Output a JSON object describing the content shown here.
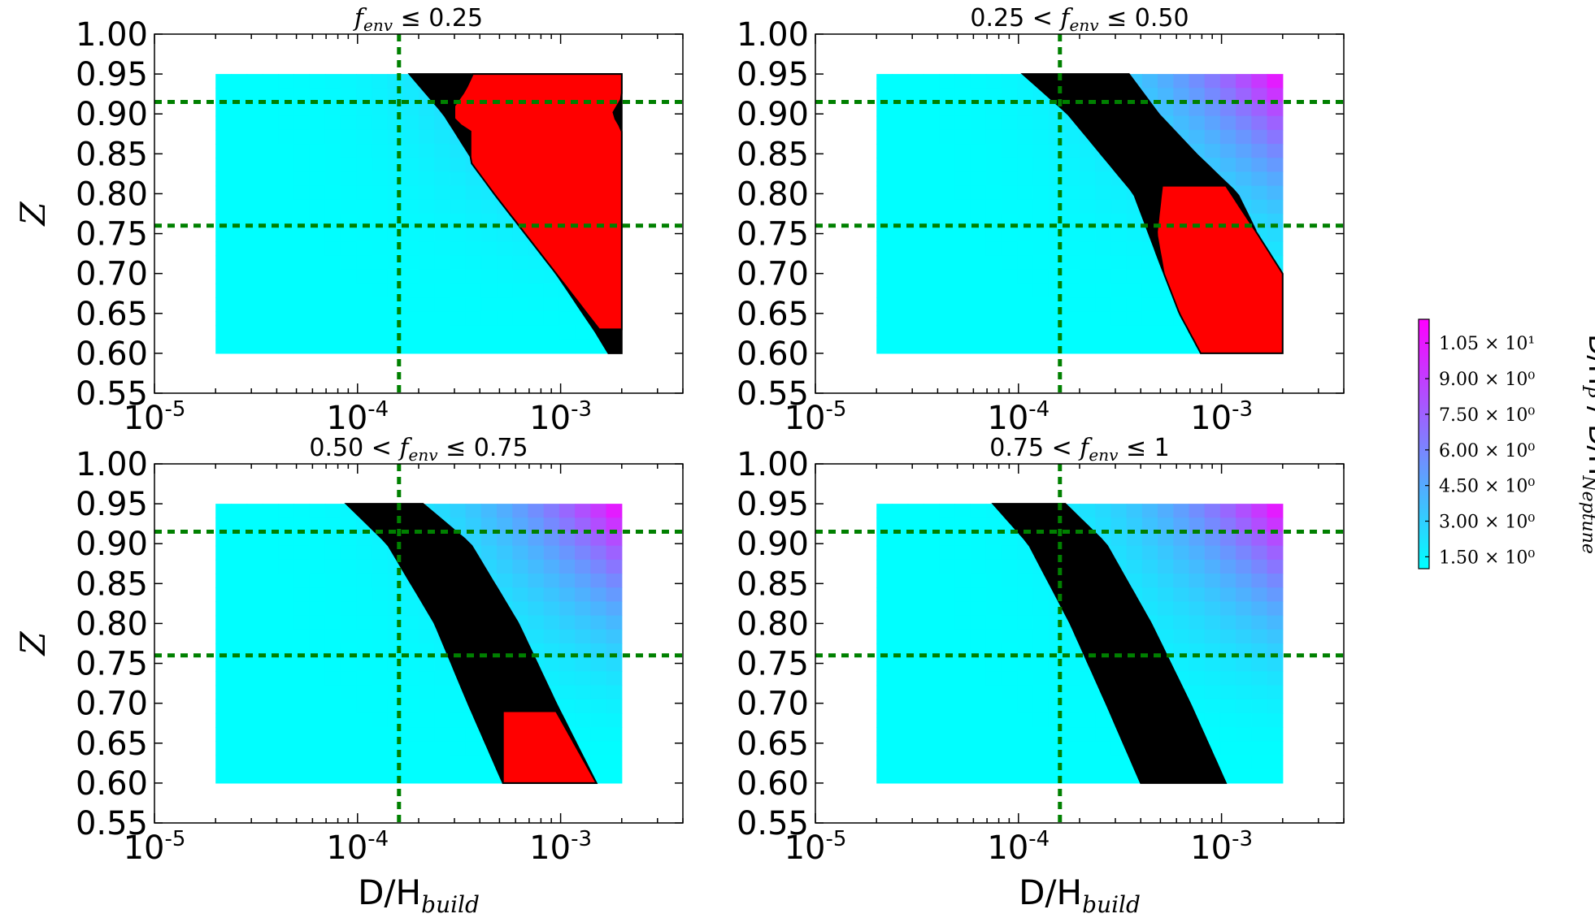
{
  "chart_data": [
    {
      "type": "scatter",
      "panel": "top-left",
      "title": "f_env ≤ 0.25",
      "title_parts": {
        "prefix": "",
        "var": "f",
        "sub": "env",
        "suffix": " ≤ 0.25"
      },
      "xlabel": "",
      "ylabel": "Z",
      "xscale": "log",
      "xlim": [
        1e-05,
        0.004
      ],
      "ylim": [
        0.55,
        1.0
      ],
      "x_ticks": [
        "10-5",
        "10-4",
        "10-3"
      ],
      "y_ticks": [
        "1.00",
        "0.95",
        "0.90",
        "0.85",
        "0.80",
        "0.75",
        "0.70",
        "0.65",
        "0.60",
        "0.55"
      ],
      "grid_x_range": [
        2e-05,
        0.002
      ],
      "grid_z_range": [
        0.6,
        0.95
      ],
      "reference_lines": {
        "x": 0.00016,
        "z": [
          0.915,
          0.76
        ]
      },
      "regions": [
        {
          "name": "black band",
          "color": "#000000",
          "z_lo": 0.6,
          "z_hi": 0.95,
          "left": [
            [
              0.6,
              0.00172
            ],
            [
              0.625,
              0.0015
            ],
            [
              0.7,
              0.00095
            ],
            [
              0.8,
              0.00047
            ],
            [
              0.9,
              0.000265
            ],
            [
              0.95,
              0.00018
            ]
          ],
          "right": [
            [
              0.6,
              0.002
            ],
            [
              0.95,
              0.002
            ]
          ]
        },
        {
          "name": "red region",
          "color": "#ff0000",
          "z_lo": 0.63,
          "z_hi": 0.95,
          "left": [
            [
              0.63,
              0.00155
            ],
            [
              0.7,
              0.00095
            ],
            [
              0.8,
              0.00047
            ],
            [
              0.84,
              0.00036
            ],
            [
              0.86,
              0.00036
            ],
            [
              0.88,
              0.00036
            ],
            [
              0.89,
              0.0003
            ],
            [
              0.91,
              0.0003
            ],
            [
              0.93,
              0.00034
            ],
            [
              0.95,
              0.00037
            ]
          ],
          "right": [
            [
              0.63,
              0.002
            ],
            [
              0.88,
              0.002
            ],
            [
              0.9,
              0.0018
            ],
            [
              0.92,
              0.002
            ],
            [
              0.95,
              0.002
            ]
          ]
        }
      ]
    },
    {
      "type": "scatter",
      "panel": "top-right",
      "title": "0.25 < f_env ≤ 0.50",
      "title_parts": {
        "prefix": "0.25  <  ",
        "var": "f",
        "sub": "env",
        "suffix": "  ≤  0.50"
      },
      "xlabel": "",
      "ylabel": "",
      "xscale": "log",
      "xlim": [
        1e-05,
        0.004
      ],
      "ylim": [
        0.55,
        1.0
      ],
      "x_ticks": [
        "10-5",
        "10-4",
        "10-3"
      ],
      "y_ticks": [
        "1.00",
        "0.95",
        "0.90",
        "0.85",
        "0.80",
        "0.75",
        "0.70",
        "0.65",
        "0.60",
        "0.55"
      ],
      "grid_x_range": [
        2e-05,
        0.002
      ],
      "grid_z_range": [
        0.6,
        0.95
      ],
      "reference_lines": {
        "x": 0.00016,
        "z": [
          0.915,
          0.76
        ]
      },
      "regions": [
        {
          "name": "black band",
          "color": "#000000",
          "z_lo": 0.66,
          "z_hi": 0.95,
          "left": [
            [
              0.66,
              0.00062
            ],
            [
              0.7,
              0.00052
            ],
            [
              0.8,
              0.00037
            ],
            [
              0.9,
              0.000175
            ],
            [
              0.95,
              0.000105
            ]
          ],
          "right": [
            [
              0.66,
              0.0008
            ],
            [
              0.7,
              0.0012
            ],
            [
              0.75,
              0.0015
            ],
            [
              0.8,
              0.0012
            ],
            [
              0.85,
              0.00075
            ],
            [
              0.9,
              0.00049
            ],
            [
              0.95,
              0.00035
            ]
          ]
        },
        {
          "name": "red region",
          "color": "#ff0000",
          "z_lo": 0.6,
          "z_hi": 0.81,
          "left": [
            [
              0.6,
              0.00079
            ],
            [
              0.65,
              0.00062
            ],
            [
              0.7,
              0.00052
            ],
            [
              0.75,
              0.00048
            ],
            [
              0.81,
              0.00051
            ]
          ],
          "right": [
            [
              0.6,
              0.002
            ],
            [
              0.7,
              0.002
            ],
            [
              0.75,
              0.0015
            ],
            [
              0.81,
              0.00105
            ]
          ]
        }
      ]
    },
    {
      "type": "scatter",
      "panel": "bottom-left",
      "title": "0.50 < f_env ≤ 0.75",
      "title_parts": {
        "prefix": "0.50  <  ",
        "var": "f",
        "sub": "env",
        "suffix": "  ≤  0.75"
      },
      "xlabel": "D/H_build",
      "ylabel": "Z",
      "xscale": "log",
      "xlim": [
        1e-05,
        0.004
      ],
      "ylim": [
        0.55,
        1.0
      ],
      "x_ticks": [
        "10-5",
        "10-4",
        "10-3"
      ],
      "y_ticks": [
        "1.00",
        "0.95",
        "0.90",
        "0.85",
        "0.80",
        "0.75",
        "0.70",
        "0.65",
        "0.60",
        "0.55"
      ],
      "grid_x_range": [
        2e-05,
        0.002
      ],
      "grid_z_range": [
        0.6,
        0.95
      ],
      "reference_lines": {
        "x": 0.00016,
        "z": [
          0.915,
          0.76
        ]
      },
      "regions": [
        {
          "name": "black band",
          "color": "#000000",
          "z_lo": 0.6,
          "z_hi": 0.95,
          "left": [
            [
              0.6,
              0.00052
            ],
            [
              0.7,
              0.00035
            ],
            [
              0.8,
              0.00024
            ],
            [
              0.9,
              0.00014
            ],
            [
              0.95,
              8.8e-05
            ]
          ],
          "right": [
            [
              0.6,
              0.0015
            ],
            [
              0.7,
              0.00095
            ],
            [
              0.8,
              0.00062
            ],
            [
              0.9,
              0.00036
            ],
            [
              0.95,
              0.00021
            ]
          ]
        },
        {
          "name": "red region",
          "color": "#ff0000",
          "z_lo": 0.6,
          "z_hi": 0.69,
          "left": [
            [
              0.6,
              0.00052
            ],
            [
              0.69,
              0.00052
            ]
          ],
          "right": [
            [
              0.6,
              0.0015
            ],
            [
              0.69,
              0.00095
            ]
          ]
        }
      ]
    },
    {
      "type": "scatter",
      "panel": "bottom-right",
      "title": "0.75 < f_env ≤ 1",
      "title_parts": {
        "prefix": "0.75  <  ",
        "var": "f",
        "sub": "env",
        "suffix": "  ≤  1"
      },
      "xlabel": "D/H_build",
      "ylabel": "",
      "xscale": "log",
      "xlim": [
        1e-05,
        0.004
      ],
      "ylim": [
        0.55,
        1.0
      ],
      "x_ticks": [
        "10-5",
        "10-4",
        "10-3"
      ],
      "y_ticks": [
        "1.00",
        "0.95",
        "0.90",
        "0.85",
        "0.80",
        "0.75",
        "0.70",
        "0.65",
        "0.60",
        "0.55"
      ],
      "grid_x_range": [
        2e-05,
        0.002
      ],
      "grid_z_range": [
        0.6,
        0.95
      ],
      "reference_lines": {
        "x": 0.00016,
        "z": [
          0.915,
          0.76
        ]
      },
      "regions": [
        {
          "name": "black band",
          "color": "#000000",
          "z_lo": 0.6,
          "z_hi": 0.95,
          "left": [
            [
              0.6,
              0.0004
            ],
            [
              0.7,
              0.00027
            ],
            [
              0.8,
              0.00018
            ],
            [
              0.9,
              0.000112
            ],
            [
              0.95,
              7.5e-05
            ]
          ],
          "right": [
            [
              0.6,
              0.00105
            ],
            [
              0.7,
              0.0007
            ],
            [
              0.8,
              0.00045
            ],
            [
              0.9,
              0.00027
            ],
            [
              0.95,
              0.00017
            ]
          ]
        }
      ]
    }
  ],
  "colorbar": {
    "title": "D/H_P / D/H_Neptune",
    "title_parts": {
      "a": "D/H",
      "a_sub": "P",
      "sep": " / ",
      "b": "D/H",
      "b_sub": "Neptune"
    },
    "colors": {
      "low": "#00ffff",
      "high": "#ff00ff"
    },
    "range": [
      1.0,
      11.5
    ],
    "ticks": [
      {
        "value": 1.5,
        "label": "1.50 × 10⁰"
      },
      {
        "value": 3.0,
        "label": "3.00 × 10⁰"
      },
      {
        "value": 4.5,
        "label": "4.50 × 10⁰"
      },
      {
        "value": 6.0,
        "label": "6.00 × 10⁰"
      },
      {
        "value": 7.5,
        "label": "7.50 × 10⁰"
      },
      {
        "value": 9.0,
        "label": "9.00 × 10⁰"
      },
      {
        "value": 10.5,
        "label": "1.05 × 10¹"
      }
    ]
  },
  "style": {
    "reference_line_color": "#008000",
    "base_color": "#00ffff",
    "corner_color": "#ff00ff"
  }
}
